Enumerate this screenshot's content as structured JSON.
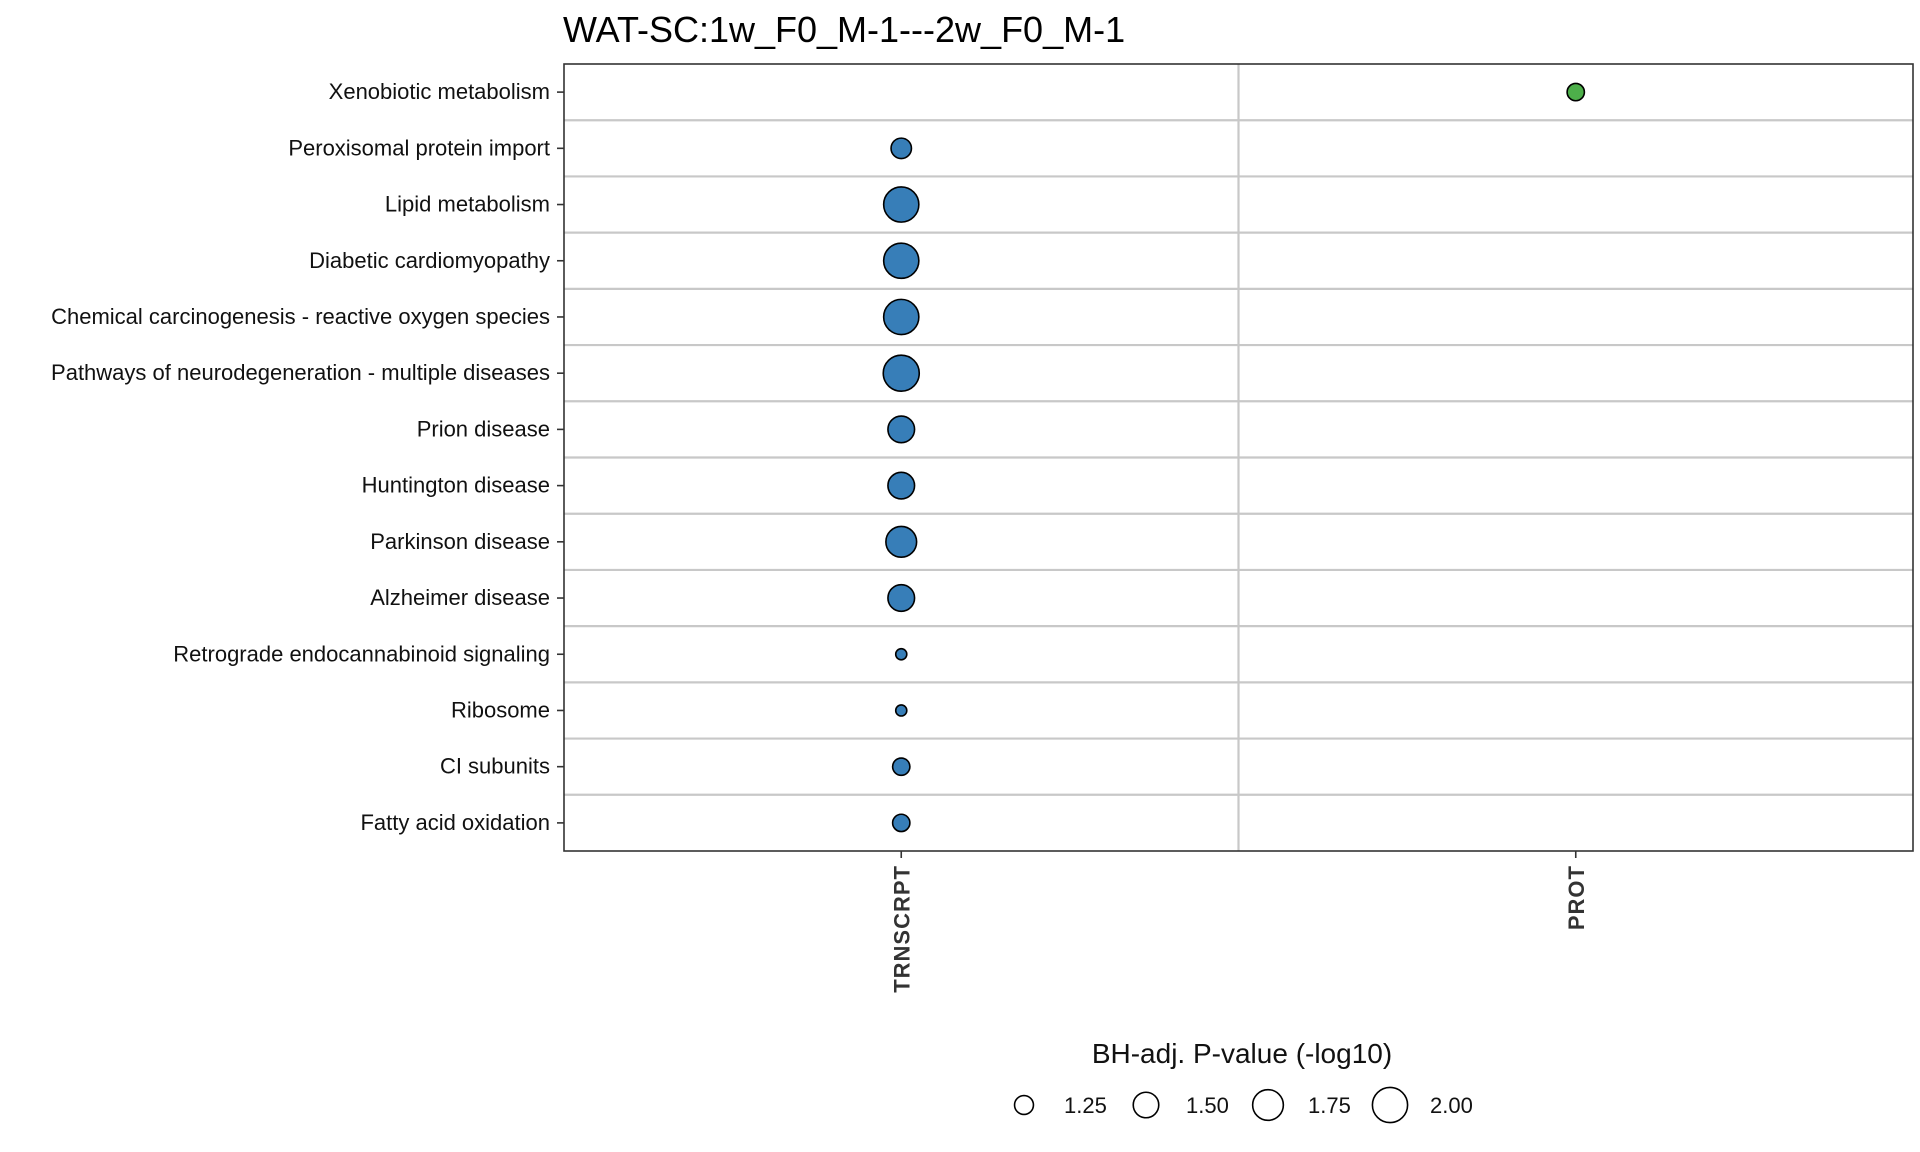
{
  "chart_data": {
    "type": "scatter",
    "title": "WAT-SC:1w_F0_M-1---2w_F0_M-1",
    "x_categories": [
      "TRNSCRPT",
      "PROT"
    ],
    "y_categories": [
      "Xenobiotic metabolism",
      "Peroxisomal protein import",
      "Lipid metabolism",
      "Diabetic cardiomyopathy",
      "Chemical carcinogenesis - reactive oxygen species",
      "Pathways of neurodegeneration - multiple diseases",
      "Prion disease",
      "Huntington disease",
      "Parkinson disease",
      "Alzheimer disease",
      "Retrograde endocannabinoid signaling",
      "Ribosome",
      "CI subunits",
      "Fatty acid oxidation"
    ],
    "points": [
      {
        "x": "PROT",
        "y": "Xenobiotic metabolism",
        "size": 1.2,
        "color": "#4daf4a"
      },
      {
        "x": "TRNSCRPT",
        "y": "Peroxisomal protein import",
        "size": 1.3,
        "color": "#377eb8"
      },
      {
        "x": "TRNSCRPT",
        "y": "Lipid metabolism",
        "size": 2.0,
        "color": "#377eb8"
      },
      {
        "x": "TRNSCRPT",
        "y": "Diabetic cardiomyopathy",
        "size": 2.0,
        "color": "#377eb8"
      },
      {
        "x": "TRNSCRPT",
        "y": "Chemical carcinogenesis - reactive oxygen species",
        "size": 2.0,
        "color": "#377eb8"
      },
      {
        "x": "TRNSCRPT",
        "y": "Pathways of neurodegeneration - multiple diseases",
        "size": 2.05,
        "color": "#377eb8"
      },
      {
        "x": "TRNSCRPT",
        "y": "Prion disease",
        "size": 1.55,
        "color": "#377eb8"
      },
      {
        "x": "TRNSCRPT",
        "y": "Huntington disease",
        "size": 1.55,
        "color": "#377eb8"
      },
      {
        "x": "TRNSCRPT",
        "y": "Parkinson disease",
        "size": 1.75,
        "color": "#377eb8"
      },
      {
        "x": "TRNSCRPT",
        "y": "Alzheimer disease",
        "size": 1.55,
        "color": "#377eb8"
      },
      {
        "x": "TRNSCRPT",
        "y": "Retrograde endocannabinoid signaling",
        "size": 1.05,
        "color": "#377eb8"
      },
      {
        "x": "TRNSCRPT",
        "y": "Ribosome",
        "size": 1.05,
        "color": "#377eb8"
      },
      {
        "x": "TRNSCRPT",
        "y": "CI subunits",
        "size": 1.2,
        "color": "#377eb8"
      },
      {
        "x": "TRNSCRPT",
        "y": "Fatty acid oxidation",
        "size": 1.2,
        "color": "#377eb8"
      }
    ],
    "legend": {
      "title": "BH-adj. P-value (-log10)",
      "values": [
        1.25,
        1.5,
        1.75,
        2.0
      ],
      "labels": [
        "1.25",
        "1.50",
        "1.75",
        "2.00"
      ],
      "placement": "bottom"
    },
    "grid": true,
    "colors": {
      "grid": "#c8c8c8",
      "border": "#333333"
    }
  }
}
